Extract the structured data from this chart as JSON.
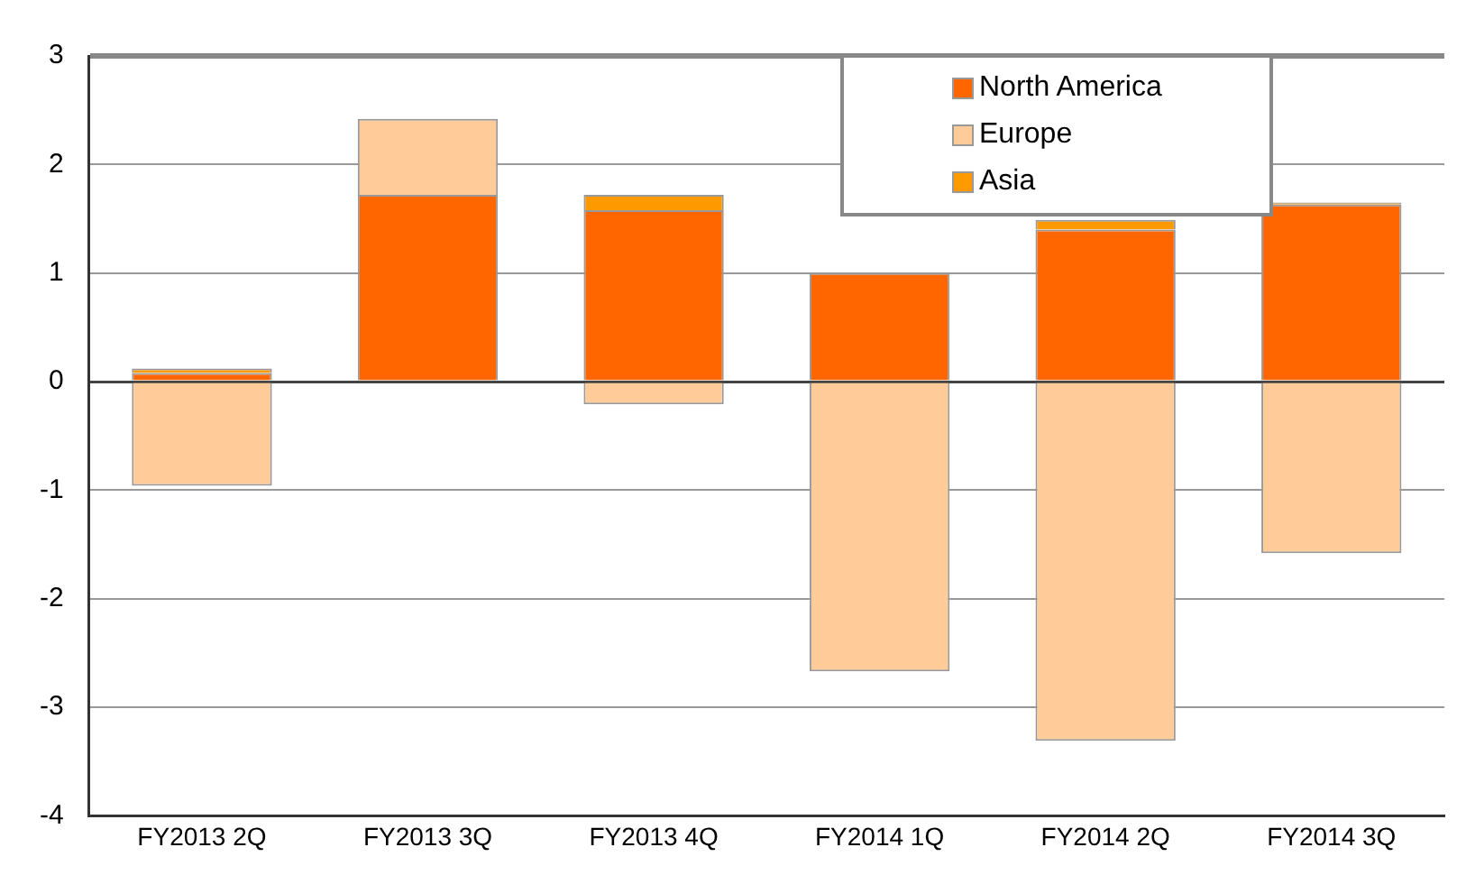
{
  "chart_data": {
    "type": "bar",
    "stacked": true,
    "categories": [
      "FY2013 2Q",
      "FY2013 3Q",
      "FY2013 4Q",
      "FY2014 1Q",
      "FY2014 2Q",
      "FY2014 3Q"
    ],
    "series": [
      {
        "name": "North America",
        "color": "#ff6600",
        "values": [
          0.08,
          1.72,
          1.58,
          1.0,
          1.4,
          1.63
        ]
      },
      {
        "name": "Europe",
        "color": "#ffcc99",
        "values": [
          -0.96,
          0.7,
          -0.21,
          -2.67,
          -3.31,
          -1.58
        ]
      },
      {
        "name": "Asia",
        "color": "#ff9900",
        "values": [
          0.04,
          0,
          0.14,
          0,
          0.09,
          0.02
        ]
      }
    ],
    "ylim": [
      -4,
      3
    ],
    "yticks": [
      -4,
      -3,
      -2,
      -1,
      0,
      1,
      2,
      3
    ],
    "grid": "y",
    "legend": "top right"
  }
}
